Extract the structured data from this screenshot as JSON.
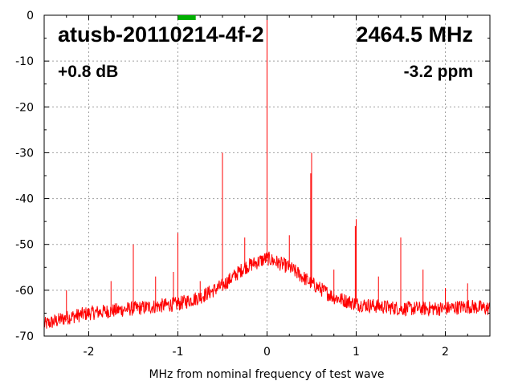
{
  "chart_data": {
    "type": "line",
    "title": "atusb-20110214-4f-2",
    "frequency_label": "2464.5 MHz",
    "gain_label": "+0.8 dB",
    "ppm_label": "-3.2 ppm",
    "xlabel": "MHz from nominal frequency of test wave",
    "ylabel": "",
    "xlim": [
      -2.5,
      2.5
    ],
    "ylim": [
      -70,
      0
    ],
    "xticks": [
      -2,
      -1,
      0,
      1,
      2
    ],
    "yticks": [
      0,
      -10,
      -20,
      -30,
      -40,
      -50,
      -60,
      -70
    ],
    "grid": true,
    "line_color": "#ff0000",
    "marker_color": "#00b000",
    "marker_x_range": [
      -1.0,
      -0.8
    ],
    "noise_floor": [
      [
        -2.5,
        -67.5
      ],
      [
        -2.25,
        -66
      ],
      [
        -2.0,
        -65
      ],
      [
        -1.75,
        -64.5
      ],
      [
        -1.5,
        -64
      ],
      [
        -1.25,
        -63.5
      ],
      [
        -1.0,
        -63
      ],
      [
        -0.75,
        -61.5
      ],
      [
        -0.5,
        -59
      ],
      [
        -0.25,
        -55
      ],
      [
        0.0,
        -53
      ],
      [
        0.25,
        -55
      ],
      [
        0.5,
        -58.5
      ],
      [
        0.75,
        -61.5
      ],
      [
        1.0,
        -63
      ],
      [
        1.25,
        -63.5
      ],
      [
        1.5,
        -64
      ],
      [
        1.75,
        -64
      ],
      [
        2.0,
        -64
      ],
      [
        2.25,
        -63.5
      ],
      [
        2.5,
        -64
      ]
    ],
    "spurs": [
      [
        0.0,
        0
      ],
      [
        0.5,
        -30
      ],
      [
        -0.5,
        -30
      ],
      [
        0.49,
        -34.5
      ],
      [
        1.0,
        -44.5
      ],
      [
        0.99,
        -46
      ],
      [
        -1.0,
        -47.5
      ],
      [
        -1.5,
        -50
      ],
      [
        1.5,
        -48.5
      ],
      [
        -0.25,
        -48.5
      ],
      [
        0.25,
        -48
      ],
      [
        -1.25,
        -57
      ],
      [
        -1.75,
        -58
      ],
      [
        -2.25,
        -60
      ],
      [
        -0.75,
        -58
      ],
      [
        0.75,
        -55.5
      ],
      [
        1.25,
        -57
      ],
      [
        1.75,
        -55.5
      ],
      [
        2.0,
        -59.5
      ],
      [
        2.25,
        -58.5
      ],
      [
        -1.05,
        -56
      ]
    ]
  }
}
